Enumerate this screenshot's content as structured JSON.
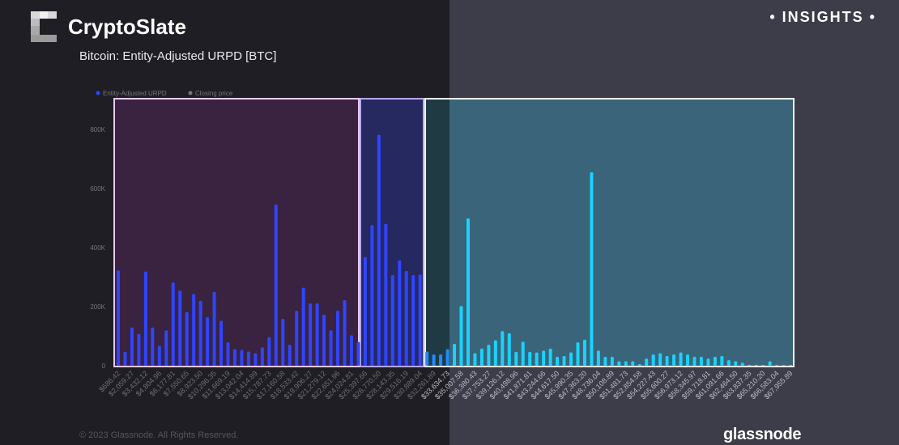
{
  "header": {
    "brand": "CryptoSlate",
    "subtitle": "Bitcoin: Entity-Adjusted URPD [BTC]",
    "insights": "• INSIGHTS •"
  },
  "footer": {
    "copyright": "© 2023 Glassnode. All Rights Reserved.",
    "brand": "glassnode"
  },
  "colors": {
    "bar": "#2f45ff",
    "bar_highlight": "#1ad2ff",
    "region_1": "#3a2340",
    "region_2": "#262860",
    "region_3": "#3a6479"
  },
  "chart_data": {
    "type": "bar",
    "title": "Bitcoin: Entity-Adjusted URPD [BTC]",
    "legend": [
      {
        "name": "Entity-Adjusted URPD",
        "color": "#2f45ff"
      },
      {
        "name": "Closing price",
        "color": "#777777"
      }
    ],
    "legend_position": "top-left",
    "ylim": [
      0,
      900000
    ],
    "y_ticks": [
      "0",
      "200K",
      "400K",
      "600K",
      "800K"
    ],
    "y_tick_values": [
      0,
      200000,
      400000,
      600000,
      800000
    ],
    "x_tick_labels": [
      "$686.42",
      "$2,059.27",
      "$3,432.12",
      "$4,804.96",
      "$6,177.81",
      "$7,550.65",
      "$8,923.50",
      "$10,296.35",
      "$11,669.19",
      "$13,042.04",
      "$14,414.89",
      "$15,787.73",
      "$17,160.58",
      "$18,533.42",
      "$19,906.27",
      "$21,279.12",
      "$22,651.96",
      "$24,024.81",
      "$25,397.66",
      "$26,770.50",
      "$28,143.35",
      "$29,516.19",
      "$30,889.04",
      "$32,261.89",
      "$33,634.73",
      "$35,007.58",
      "$36,380.43",
      "$37,753.27",
      "$39,126.12",
      "$40,498.96",
      "$41,871.81",
      "$43,244.66",
      "$44,617.50",
      "$45,990.35",
      "$47,363.20",
      "$48,736.04",
      "$50,108.89",
      "$51,481.73",
      "$52,854.58",
      "$54,227.43",
      "$55,600.27",
      "$56,973.12",
      "$58,345.97",
      "$59,718.81",
      "$61,091.66",
      "$62,464.50",
      "$63,837.35",
      "$65,210.20",
      "$66,583.04",
      "$67,955.89"
    ],
    "x_tick_every_n_bars": 2,
    "values": [
      323000,
      47000,
      129000,
      108000,
      319000,
      129000,
      67000,
      120000,
      282000,
      254000,
      182000,
      243000,
      220000,
      164000,
      250000,
      152000,
      79000,
      56000,
      53000,
      48000,
      42000,
      62000,
      97000,
      546000,
      159000,
      71000,
      186000,
      264000,
      211000,
      211000,
      173000,
      120000,
      186000,
      222000,
      103000,
      80000,
      368000,
      476000,
      782000,
      480000,
      307000,
      357000,
      321000,
      307000,
      309000,
      48000,
      38000,
      38000,
      56000,
      74000,
      202000,
      499000,
      42000,
      58000,
      71000,
      86000,
      117000,
      110000,
      47000,
      81000,
      47000,
      45000,
      51000,
      58000,
      30000,
      33000,
      45000,
      79000,
      88000,
      655000,
      51000,
      30000,
      30000,
      15000,
      15000,
      15000,
      5000,
      24000,
      38000,
      42000,
      33000,
      38000,
      45000,
      38000,
      30000,
      30000,
      24000,
      30000,
      33000,
      19000,
      15000,
      10000,
      3000,
      3000,
      2000,
      15000,
      1000,
      1000,
      1000
    ],
    "highlighted_regions": [
      {
        "from_tick": "$686.42",
        "to_tick": "$25,397.66"
      },
      {
        "from_tick": "$25,397.66",
        "to_tick": "$32,261.89"
      },
      {
        "from_tick": "$32,261.89",
        "to_tick": "$67,955.89"
      }
    ]
  }
}
